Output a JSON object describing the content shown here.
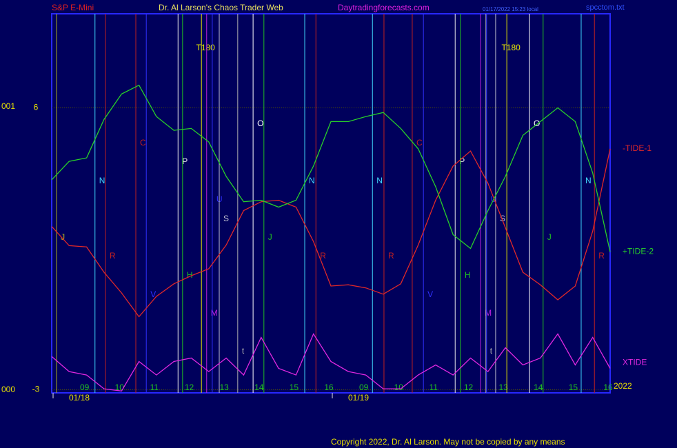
{
  "chart_data": {
    "type": "line",
    "header": {
      "instrument": "S&P E-Mini",
      "title": "Dr. Al Larson's Chaos Trader Web",
      "site": "Daytradingforecasts.com",
      "stamp": "01/17/2022 15:23 local",
      "file": "spcctom.txt"
    },
    "copyright": "Copyright 2022, Dr. Al Larson. May not be copied by any means",
    "year": "2022",
    "scale_labels": [
      "001",
      "000"
    ],
    "x": [
      0,
      0.5,
      1,
      1.5,
      2,
      2.5,
      3,
      3.5,
      4,
      4.5,
      5,
      5.5,
      6,
      6.5,
      7,
      7.5,
      8,
      8.5,
      9,
      9.5,
      10,
      10.5,
      11,
      11.5,
      12,
      12.5,
      13,
      13.5,
      14,
      14.5,
      15,
      15.5,
      16
    ],
    "xlim": [
      0,
      16
    ],
    "xticks": [
      {
        "value": 1,
        "label": "09"
      },
      {
        "value": 2,
        "label": "10"
      },
      {
        "value": 3,
        "label": "11"
      },
      {
        "value": 4,
        "label": "12"
      },
      {
        "value": 5,
        "label": "13"
      },
      {
        "value": 6,
        "label": "14"
      },
      {
        "value": 7,
        "label": "15"
      },
      {
        "value": 8,
        "label": "16"
      },
      {
        "value": 9,
        "label": "09"
      },
      {
        "value": 10,
        "label": "10"
      },
      {
        "value": 11,
        "label": "11"
      },
      {
        "value": 12,
        "label": "12"
      },
      {
        "value": 13,
        "label": "13"
      },
      {
        "value": 14,
        "label": "14"
      },
      {
        "value": 15,
        "label": "15"
      },
      {
        "value": 16,
        "label": "16"
      }
    ],
    "date_ticks": [
      {
        "value": 0,
        "label": "01/18"
      },
      {
        "value": 8,
        "label": "01/19"
      }
    ],
    "ylim": [
      -3.1,
      9
    ],
    "yticks": [
      6,
      -3
    ],
    "series": [
      {
        "name": "-TIDE-1",
        "color": "#e02828",
        "values": [
          2.21,
          1.6,
          1.56,
          0.75,
          0.09,
          -0.67,
          -0.02,
          0.38,
          0.64,
          0.86,
          1.62,
          2.72,
          3.0,
          3.05,
          2.83,
          1.73,
          0.31,
          0.35,
          0.25,
          0.05,
          0.38,
          1.62,
          3.05,
          4.14,
          4.62,
          3.59,
          2.17,
          0.75,
          0.35,
          -0.13,
          0.31,
          2.06,
          4.69
        ]
      },
      {
        "name": "+TIDE-2",
        "color": "#28d028",
        "values": [
          3.7,
          4.29,
          4.4,
          5.63,
          6.44,
          6.72,
          5.72,
          5.28,
          5.34,
          4.91,
          3.81,
          3.0,
          3.05,
          2.83,
          3.05,
          4.14,
          5.56,
          5.56,
          5.72,
          5.85,
          5.34,
          4.69,
          3.48,
          1.95,
          1.51,
          2.72,
          3.81,
          5.12,
          5.56,
          6.0,
          5.56,
          3.92,
          1.4
        ]
      },
      {
        "name": "XTIDE",
        "color": "#e028e0",
        "values": [
          -1.94,
          -2.42,
          -2.53,
          -2.97,
          -3.04,
          -2.1,
          -2.53,
          -2.1,
          -1.99,
          -2.42,
          -1.99,
          -2.53,
          -1.33,
          -2.32,
          -2.53,
          -1.22,
          -2.1,
          -2.42,
          -2.53,
          -2.97,
          -2.97,
          -2.53,
          -2.21,
          -2.53,
          -1.99,
          -2.42,
          -1.66,
          -2.21,
          -1.99,
          -1.22,
          -2.21,
          -1.33,
          -2.32
        ]
      }
    ],
    "markers": [
      {
        "label": "J",
        "color": "#b0b020",
        "x": 0.14
      },
      {
        "label": "N",
        "color": "#40d8ff",
        "x": 1.24
      },
      {
        "label": "R",
        "color": "#c02020",
        "x": 1.54
      },
      {
        "label": "C",
        "color": "#c02020",
        "x": 2.41
      },
      {
        "label": "V",
        "color": "#3030ff",
        "x": 2.71
      },
      {
        "label": "P",
        "color": "#e8e8e8",
        "x": 3.62
      },
      {
        "label": "H",
        "color": "#20c020",
        "x": 3.75
      },
      {
        "label": "T180",
        "color": "#e8e800",
        "x": 4.29
      },
      {
        "label": "M",
        "color": "#c020e0",
        "x": 4.44
      },
      {
        "label": "U",
        "color": "#3030ff",
        "x": 4.6
      },
      {
        "label": "S",
        "color": "#c0c0d0",
        "x": 4.8
      },
      {
        "label": "t",
        "color": "#b0b0b0",
        "x": 5.33
      },
      {
        "label": "O",
        "color": "#ffffff",
        "x": 5.77
      },
      {
        "label": "J",
        "color": "#20c020",
        "x": 6.08
      },
      {
        "label": "N",
        "color": "#40d8ff",
        "x": 7.25
      },
      {
        "label": "R",
        "color": "#c02020",
        "x": 7.57
      },
      {
        "label": "N",
        "color": "#40d8ff",
        "x": 9.19
      },
      {
        "label": "R",
        "color": "#c02020",
        "x": 9.52
      },
      {
        "label": "C",
        "color": "#c02020",
        "x": 10.33
      },
      {
        "label": "V",
        "color": "#3030ff",
        "x": 10.65
      },
      {
        "label": "P",
        "color": "#e8e8e8",
        "x": 11.56
      },
      {
        "label": "H",
        "color": "#20c020",
        "x": 11.71
      },
      {
        "label": "M",
        "color": "#c020e0",
        "x": 12.29
      },
      {
        "label": "t",
        "color": "#b0b0b0",
        "x": 12.44
      },
      {
        "label": "U",
        "color": "#3030ff",
        "x": 12.46
      },
      {
        "label": "S",
        "color": "#c0c0d0",
        "x": 12.72
      },
      {
        "label": "T180",
        "color": "#e8e800",
        "x": 13.04
      },
      {
        "label": "O",
        "color": "#ffffff",
        "x": 13.69
      },
      {
        "label": "J",
        "color": "#20c020",
        "x": 14.08
      },
      {
        "label": "N",
        "color": "#40d8ff",
        "x": 15.17
      },
      {
        "label": "R",
        "color": "#c02020",
        "x": 15.55
      }
    ]
  }
}
